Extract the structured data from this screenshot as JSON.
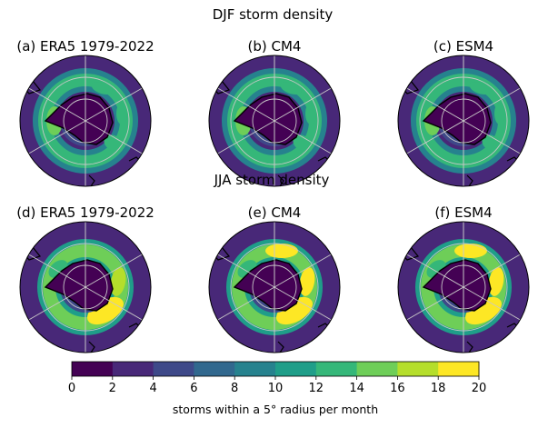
{
  "figure": {
    "row_titles": [
      "DJF storm density",
      "JJA storm density"
    ]
  },
  "panels": [
    {
      "title": "(a) ERA5 1979-2022",
      "season": "DJF",
      "peak_level": 14,
      "ring_level": 12
    },
    {
      "title": "(b) CM4",
      "season": "DJF",
      "peak_level": 14,
      "ring_level": 12
    },
    {
      "title": "(c) ESM4",
      "season": "DJF",
      "peak_level": 14,
      "ring_level": 12
    },
    {
      "title": "(d) ERA5 1979-2022",
      "season": "JJA",
      "peak_level": 18,
      "ring_level": 14
    },
    {
      "title": "(e) CM4",
      "season": "JJA",
      "peak_level": 20,
      "ring_level": 14
    },
    {
      "title": "(f) ESM4",
      "season": "JJA",
      "peak_level": 20,
      "ring_level": 14
    }
  ],
  "colorbar": {
    "label": "storms within a 5° radius per month",
    "ticks": [
      "0",
      "2",
      "4",
      "6",
      "8",
      "10",
      "12",
      "14",
      "16",
      "18",
      "20"
    ],
    "colors": [
      "#440154",
      "#482878",
      "#3e4989",
      "#31688e",
      "#26828e",
      "#1f9e89",
      "#35b779",
      "#6ece58",
      "#b5de2b",
      "#fde725"
    ]
  },
  "chart_data": [
    {
      "type": "heatmap",
      "title": "(a) ERA5 1979-2022",
      "projection": "south polar stereographic",
      "units": "storms within a 5° radius per month",
      "range": [
        0,
        20
      ]
    },
    {
      "type": "heatmap",
      "title": "(b) CM4",
      "projection": "south polar stereographic",
      "units": "storms within a 5° radius per month",
      "range": [
        0,
        20
      ]
    },
    {
      "type": "heatmap",
      "title": "(c) ESM4",
      "projection": "south polar stereographic",
      "units": "storms within a 5° radius per month",
      "range": [
        0,
        20
      ]
    },
    {
      "type": "heatmap",
      "title": "(d) ERA5 1979-2022",
      "projection": "south polar stereographic",
      "units": "storms within a 5° radius per month",
      "range": [
        0,
        20
      ]
    },
    {
      "type": "heatmap",
      "title": "(e) CM4",
      "projection": "south polar stereographic",
      "units": "storms within a 5° radius per month",
      "range": [
        0,
        20
      ]
    },
    {
      "type": "heatmap",
      "title": "(f) ESM4",
      "projection": "south polar stereographic",
      "units": "storms within a 5° radius per month",
      "range": [
        0,
        20
      ]
    }
  ]
}
